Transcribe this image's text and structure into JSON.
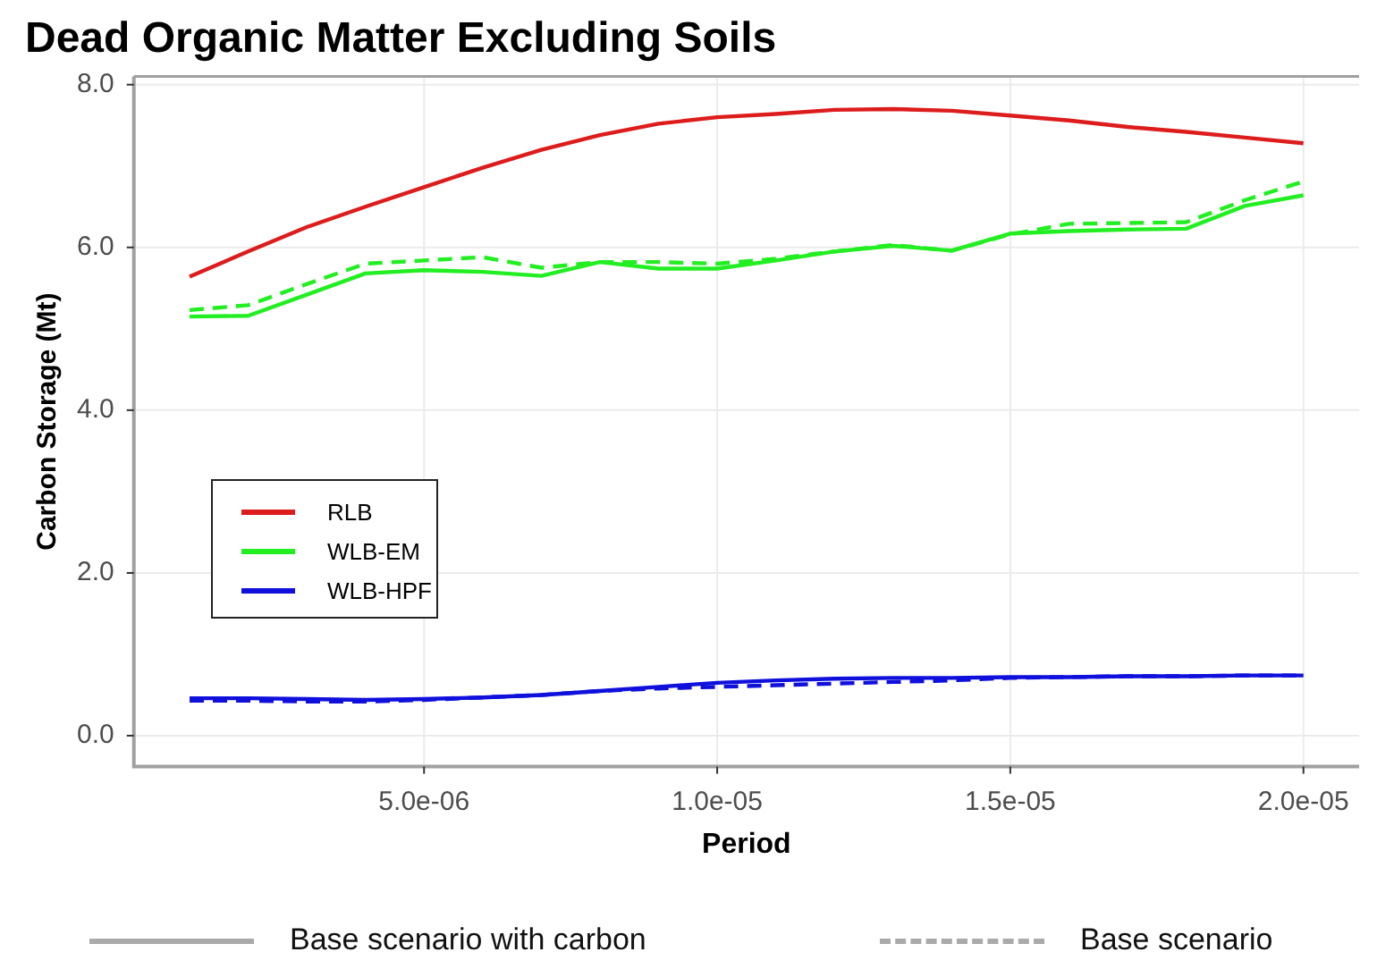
{
  "chart_data": {
    "type": "line",
    "title": "Dead Organic Matter Excluding Soils",
    "xlabel": "Period",
    "ylabel": "Carbon Storage (Mt)",
    "x": [
      1e-06,
      2e-06,
      3e-06,
      4e-06,
      5e-06,
      6e-06,
      7e-06,
      8e-06,
      9e-06,
      1e-05,
      1.1e-05,
      1.2e-05,
      1.3e-05,
      1.4e-05,
      1.5e-05,
      1.6e-05,
      1.7e-05,
      1.8e-05,
      1.9e-05,
      2e-05
    ],
    "series": [
      {
        "name": "RLB",
        "color": "#dd1c1c",
        "line_style": "solid",
        "values": [
          5.64,
          5.95,
          6.25,
          6.5,
          6.74,
          6.98,
          7.2,
          7.38,
          7.52,
          7.6,
          7.64,
          7.69,
          7.7,
          7.68,
          7.62,
          7.56,
          7.48,
          7.42,
          7.35,
          7.28
        ]
      },
      {
        "name": "WLB-EM",
        "color": "#22ee22",
        "line_style": "solid",
        "values": [
          5.15,
          5.16,
          5.42,
          5.68,
          5.72,
          5.7,
          5.65,
          5.82,
          5.74,
          5.74,
          5.84,
          5.95,
          6.02,
          5.96,
          6.17,
          6.2,
          6.22,
          6.23,
          6.51,
          6.64
        ]
      },
      {
        "color": "#22ee22",
        "line_style": "dashed",
        "values": [
          5.23,
          5.29,
          5.55,
          5.8,
          5.84,
          5.88,
          5.75,
          5.82,
          5.82,
          5.8,
          5.86,
          5.95,
          6.03,
          5.96,
          6.16,
          6.29,
          6.3,
          6.31,
          6.58,
          6.81
        ]
      },
      {
        "name": "WLB-HPF",
        "color": "#1010dd",
        "line_style": "solid",
        "values": [
          0.46,
          0.46,
          0.45,
          0.44,
          0.45,
          0.47,
          0.5,
          0.55,
          0.6,
          0.65,
          0.68,
          0.7,
          0.71,
          0.71,
          0.72,
          0.72,
          0.73,
          0.73,
          0.74,
          0.74
        ]
      },
      {
        "color": "#1010dd",
        "line_style": "dashed",
        "values": [
          0.43,
          0.43,
          0.42,
          0.42,
          0.44,
          0.47,
          0.5,
          0.55,
          0.58,
          0.6,
          0.62,
          0.64,
          0.66,
          0.68,
          0.71,
          0.72,
          0.73,
          0.73,
          0.74,
          0.74
        ]
      }
    ],
    "xlim": [
      5e-08,
      2.095e-05
    ],
    "xticks": [
      {
        "value": 5e-06,
        "label": "5.0e-06"
      },
      {
        "value": 1e-05,
        "label": "1.0e-05"
      },
      {
        "value": 1.5e-05,
        "label": "1.5e-05"
      },
      {
        "value": 2e-05,
        "label": "2.0e-05"
      }
    ],
    "ylim": [
      -0.38,
      8.1
    ],
    "yticks": [
      {
        "value": 0,
        "label": "0.0"
      },
      {
        "value": 2,
        "label": "2.0"
      },
      {
        "value": 4,
        "label": "4.0"
      },
      {
        "value": 6,
        "label": "6.0"
      },
      {
        "value": 8,
        "label": "8.0"
      }
    ],
    "grid": true,
    "legend": "left",
    "marker": "none",
    "annotations": [
      "Base scenario with carbon",
      "Base scenario"
    ]
  }
}
